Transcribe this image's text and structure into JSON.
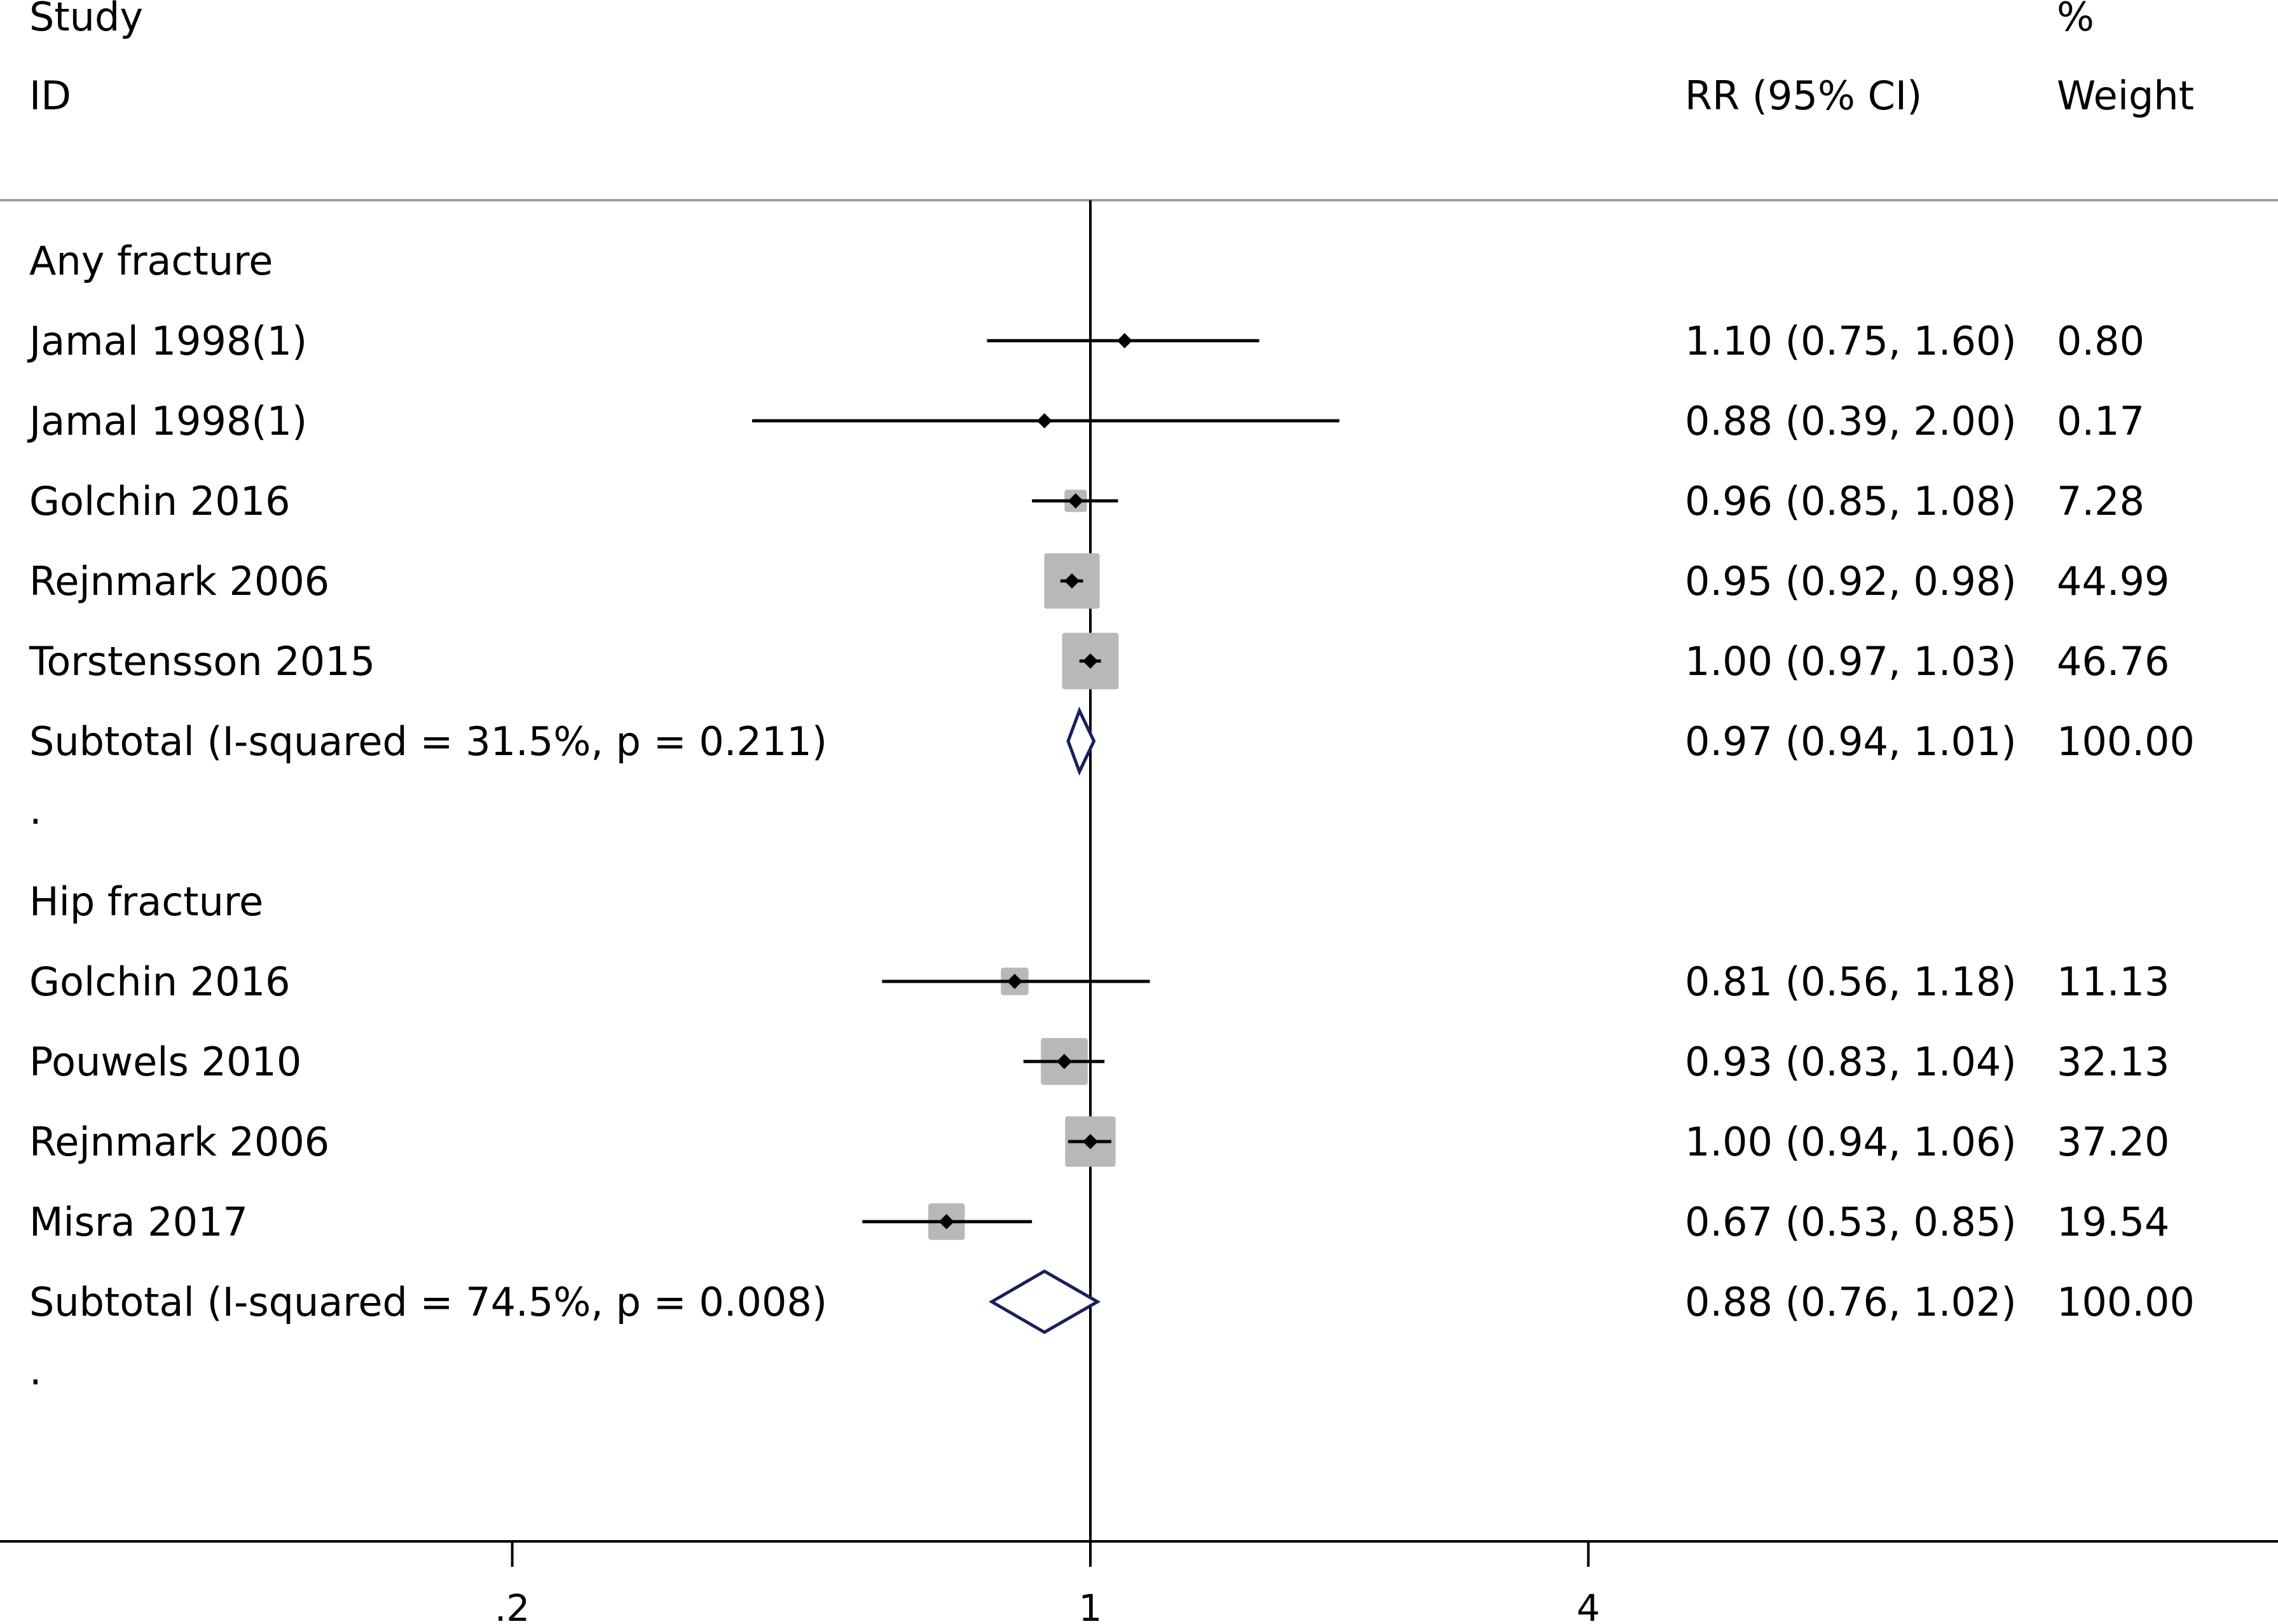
{
  "header": {
    "study_line1": "Study",
    "study_line2": "ID",
    "effect_label": "RR (95% CI)",
    "weight_line1": "%",
    "weight_line2": "Weight"
  },
  "chart_data": {
    "type": "forest",
    "x_scale": "log",
    "x_ticks": [
      0.2,
      1,
      4
    ],
    "x_tick_labels": [
      ".2",
      "1",
      "4"
    ],
    "null_line": 1,
    "rows": [
      {
        "kind": "group",
        "label": "Any fracture"
      },
      {
        "kind": "study",
        "label": "Jamal 1998(1)",
        "rr": 1.1,
        "lo": 0.75,
        "hi": 1.6,
        "weight": 0.8,
        "ci_text": "1.10 (0.75, 1.60)",
        "weight_text": "0.80"
      },
      {
        "kind": "study",
        "label": "Jamal 1998(1)",
        "rr": 0.88,
        "lo": 0.39,
        "hi": 2.0,
        "weight": 0.17,
        "ci_text": "0.88 (0.39, 2.00)",
        "weight_text": "0.17"
      },
      {
        "kind": "study",
        "label": "Golchin 2016",
        "rr": 0.96,
        "lo": 0.85,
        "hi": 1.08,
        "weight": 7.28,
        "ci_text": "0.96 (0.85, 1.08)",
        "weight_text": "7.28"
      },
      {
        "kind": "study",
        "label": "Rejnmark 2006",
        "rr": 0.95,
        "lo": 0.92,
        "hi": 0.98,
        "weight": 44.99,
        "ci_text": "0.95 (0.92, 0.98)",
        "weight_text": "44.99"
      },
      {
        "kind": "study",
        "label": "Torstensson 2015",
        "rr": 1.0,
        "lo": 0.97,
        "hi": 1.03,
        "weight": 46.76,
        "ci_text": "1.00 (0.97, 1.03)",
        "weight_text": "46.76"
      },
      {
        "kind": "subtotal",
        "label": "Subtotal  (I-squared = 31.5%, p = 0.211)",
        "rr": 0.97,
        "lo": 0.94,
        "hi": 1.01,
        "weight": 100.0,
        "ci_text": "0.97 (0.94, 1.01)",
        "weight_text": "100.00"
      },
      {
        "kind": "spacer",
        "label": "."
      },
      {
        "kind": "group",
        "label": "Hip fracture"
      },
      {
        "kind": "study",
        "label": "Golchin 2016",
        "rr": 0.81,
        "lo": 0.56,
        "hi": 1.18,
        "weight": 11.13,
        "ci_text": "0.81 (0.56, 1.18)",
        "weight_text": "11.13"
      },
      {
        "kind": "study",
        "label": "Pouwels 2010",
        "rr": 0.93,
        "lo": 0.83,
        "hi": 1.04,
        "weight": 32.13,
        "ci_text": "0.93 (0.83, 1.04)",
        "weight_text": "32.13"
      },
      {
        "kind": "study",
        "label": "Rejnmark 2006",
        "rr": 1.0,
        "lo": 0.94,
        "hi": 1.06,
        "weight": 37.2,
        "ci_text": "1.00 (0.94, 1.06)",
        "weight_text": "37.20"
      },
      {
        "kind": "study",
        "label": "Misra 2017",
        "rr": 0.67,
        "lo": 0.53,
        "hi": 0.85,
        "weight": 19.54,
        "ci_text": "0.67 (0.53, 0.85)",
        "weight_text": "19.54"
      },
      {
        "kind": "subtotal",
        "label": "Subtotal  (I-squared = 74.5%, p = 0.008)",
        "rr": 0.88,
        "lo": 0.76,
        "hi": 1.02,
        "weight": 100.0,
        "ci_text": "0.88 (0.76, 1.02)",
        "weight_text": "100.00"
      },
      {
        "kind": "spacer",
        "label": "."
      }
    ]
  }
}
